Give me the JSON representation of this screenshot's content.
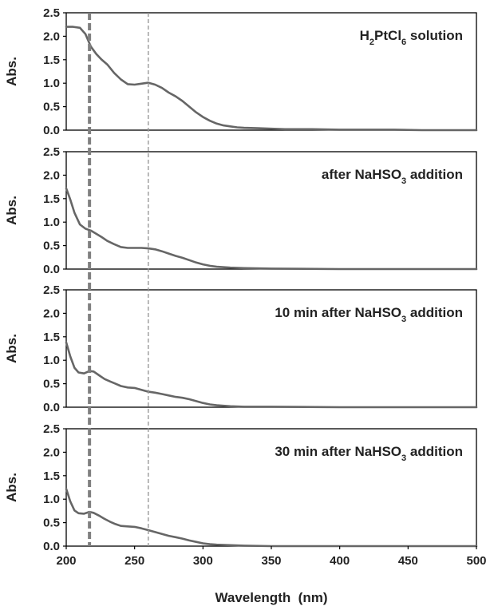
{
  "chart_data": {
    "type": "line",
    "xlabel": "Wavelength  (nm)",
    "xlim": [
      200,
      500
    ],
    "xticks": [
      "200",
      "250",
      "300",
      "350",
      "400",
      "450",
      "500"
    ],
    "reference_lines_nm": [
      {
        "x": 217,
        "style": "dashed-thick",
        "color": "#808080"
      },
      {
        "x": 260,
        "style": "dashed-thin",
        "color": "#999999"
      }
    ],
    "series_color": "#666666",
    "panels": [
      {
        "label": "H2PtCl6 solution",
        "label_parts": [
          {
            "t": "H"
          },
          {
            "t": "2",
            "sub": true
          },
          {
            "t": "PtCl"
          },
          {
            "t": "6",
            "sub": true
          },
          {
            "t": " solution"
          }
        ],
        "ylabel": "Abs.",
        "ylim": [
          0,
          2.5
        ],
        "yticks": [
          "0.0",
          "0.5",
          "1.0",
          "1.5",
          "2.0",
          "2.5"
        ],
        "x": [
          200,
          205,
          210,
          214,
          218,
          222,
          226,
          230,
          235,
          240,
          245,
          250,
          255,
          260,
          265,
          270,
          275,
          280,
          285,
          290,
          295,
          300,
          305,
          310,
          315,
          320,
          325,
          330,
          340,
          350,
          360,
          380,
          400,
          420,
          440,
          460,
          480,
          500
        ],
        "y": [
          2.2,
          2.2,
          2.18,
          2.05,
          1.78,
          1.62,
          1.5,
          1.4,
          1.22,
          1.08,
          0.98,
          0.97,
          0.99,
          1.01,
          0.97,
          0.9,
          0.8,
          0.72,
          0.62,
          0.5,
          0.38,
          0.28,
          0.2,
          0.14,
          0.1,
          0.08,
          0.06,
          0.05,
          0.04,
          0.03,
          0.02,
          0.02,
          0.01,
          0.01,
          0.01,
          0.0,
          0.0,
          0.0
        ]
      },
      {
        "label": "after NaHSO3 addition",
        "label_parts": [
          {
            "t": "after NaHSO"
          },
          {
            "t": "3",
            "sub": true
          },
          {
            "t": " addition"
          }
        ],
        "ylabel": "Abs.",
        "ylim": [
          0,
          2.5
        ],
        "yticks": [
          "0.0",
          "0.5",
          "1.0",
          "1.5",
          "2.0",
          "2.5"
        ],
        "x": [
          200,
          203,
          206,
          210,
          214,
          218,
          222,
          226,
          230,
          235,
          240,
          245,
          250,
          255,
          260,
          265,
          270,
          275,
          280,
          285,
          290,
          295,
          300,
          305,
          310,
          320,
          330,
          350,
          400,
          450,
          500
        ],
        "y": [
          1.72,
          1.48,
          1.2,
          0.95,
          0.86,
          0.82,
          0.75,
          0.68,
          0.6,
          0.53,
          0.47,
          0.45,
          0.45,
          0.45,
          0.44,
          0.42,
          0.38,
          0.33,
          0.28,
          0.24,
          0.19,
          0.14,
          0.1,
          0.07,
          0.05,
          0.03,
          0.02,
          0.01,
          0.0,
          0.0,
          0.0
        ]
      },
      {
        "label": "10 min after NaHSO3 addition",
        "label_parts": [
          {
            "t": "10 min after NaHSO"
          },
          {
            "t": "3",
            "sub": true
          },
          {
            "t": " addition"
          }
        ],
        "ylabel": "Abs.",
        "ylim": [
          0,
          2.5
        ],
        "yticks": [
          "0.0",
          "0.5",
          "1.0",
          "1.5",
          "2.0",
          "2.5"
        ],
        "x": [
          200,
          203,
          206,
          209,
          213,
          217,
          220,
          224,
          228,
          232,
          236,
          240,
          245,
          250,
          255,
          260,
          265,
          270,
          275,
          280,
          285,
          290,
          295,
          300,
          305,
          310,
          320,
          330,
          350,
          400,
          450,
          500
        ],
        "y": [
          1.38,
          1.08,
          0.84,
          0.74,
          0.72,
          0.77,
          0.76,
          0.68,
          0.6,
          0.55,
          0.5,
          0.45,
          0.42,
          0.41,
          0.37,
          0.33,
          0.31,
          0.28,
          0.25,
          0.22,
          0.2,
          0.17,
          0.13,
          0.09,
          0.06,
          0.04,
          0.02,
          0.01,
          0.01,
          0.0,
          0.0,
          0.0
        ]
      },
      {
        "label": "30 min after NaHSO3 addition",
        "label_parts": [
          {
            "t": "30 min after NaHSO"
          },
          {
            "t": "3",
            "sub": true
          },
          {
            "t": " addition"
          }
        ],
        "ylabel": "Abs.",
        "ylim": [
          0,
          2.5
        ],
        "yticks": [
          "0.0",
          "0.5",
          "1.0",
          "1.5",
          "2.0",
          "2.5"
        ],
        "x": [
          200,
          203,
          206,
          209,
          213,
          217,
          220,
          224,
          228,
          232,
          236,
          240,
          245,
          250,
          255,
          260,
          265,
          270,
          275,
          280,
          285,
          290,
          295,
          300,
          305,
          310,
          320,
          330,
          350,
          400,
          450,
          500
        ],
        "y": [
          1.22,
          0.95,
          0.76,
          0.7,
          0.69,
          0.73,
          0.71,
          0.65,
          0.58,
          0.52,
          0.47,
          0.43,
          0.42,
          0.41,
          0.38,
          0.34,
          0.3,
          0.26,
          0.22,
          0.19,
          0.16,
          0.12,
          0.09,
          0.06,
          0.04,
          0.03,
          0.02,
          0.01,
          0.0,
          0.0,
          0.0,
          0.0
        ]
      }
    ]
  }
}
